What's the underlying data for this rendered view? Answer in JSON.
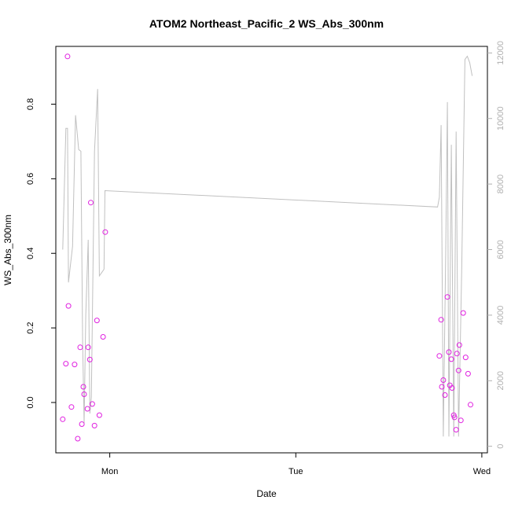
{
  "chart_data": {
    "type": "scatter",
    "title": "ATOM2 Northeast_Pacific_2 WS_Abs_300nm",
    "xlabel": "Date",
    "ylabel": "WS_Abs_300nm",
    "x_ticks": [
      {
        "label": "Mon",
        "value": 0.0
      },
      {
        "label": "Tue",
        "value": 1.0
      },
      {
        "label": "Wed",
        "value": 2.0
      }
    ],
    "xlim": [
      -0.29,
      2.03
    ],
    "ylim": [
      -0.135,
      0.955
    ],
    "y_ticks": [
      "0.0",
      "0.2",
      "0.4",
      "0.6",
      "0.8"
    ],
    "y2lim": [
      -200,
      12200
    ],
    "y2_ticks": [
      "0",
      "2000",
      "4000",
      "6000",
      "8000",
      "10000",
      "12000"
    ],
    "colors": {
      "points": "#e020e0",
      "line": "#c0c0c0",
      "axis": "#000000",
      "axis2": "#b0b0b0"
    },
    "series": [
      {
        "marker": "open-circle",
        "axis": "left",
        "points": [
          {
            "x": -0.253,
            "y": -0.045
          },
          {
            "x": -0.236,
            "y": 0.104
          },
          {
            "x": -0.227,
            "y": 0.928
          },
          {
            "x": -0.222,
            "y": 0.259
          },
          {
            "x": -0.206,
            "y": -0.012
          },
          {
            "x": -0.189,
            "y": 0.102
          },
          {
            "x": -0.172,
            "y": -0.097
          },
          {
            "x": -0.159,
            "y": 0.148
          },
          {
            "x": -0.15,
            "y": -0.058
          },
          {
            "x": -0.142,
            "y": 0.042
          },
          {
            "x": -0.138,
            "y": 0.022
          },
          {
            "x": -0.12,
            "y": -0.017
          },
          {
            "x": -0.116,
            "y": 0.148
          },
          {
            "x": -0.107,
            "y": 0.115
          },
          {
            "x": -0.102,
            "y": 0.536
          },
          {
            "x": -0.094,
            "y": -0.004
          },
          {
            "x": -0.082,
            "y": -0.062
          },
          {
            "x": -0.069,
            "y": 0.22
          },
          {
            "x": -0.056,
            "y": -0.034
          },
          {
            "x": -0.036,
            "y": 0.176
          },
          {
            "x": -0.024,
            "y": 0.457
          },
          {
            "x": 1.772,
            "y": 0.125
          },
          {
            "x": 1.781,
            "y": 0.222
          },
          {
            "x": 1.785,
            "y": 0.042
          },
          {
            "x": 1.793,
            "y": 0.06
          },
          {
            "x": 1.802,
            "y": 0.02
          },
          {
            "x": 1.815,
            "y": 0.283
          },
          {
            "x": 1.823,
            "y": 0.135
          },
          {
            "x": 1.828,
            "y": 0.046
          },
          {
            "x": 1.836,
            "y": 0.116
          },
          {
            "x": 1.84,
            "y": 0.039
          },
          {
            "x": 1.849,
            "y": -0.034
          },
          {
            "x": 1.853,
            "y": -0.04
          },
          {
            "x": 1.862,
            "y": -0.073
          },
          {
            "x": 1.866,
            "y": 0.131
          },
          {
            "x": 1.875,
            "y": 0.086
          },
          {
            "x": 1.879,
            "y": 0.154
          },
          {
            "x": 1.887,
            "y": -0.048
          },
          {
            "x": 1.9,
            "y": 0.24
          },
          {
            "x": 1.913,
            "y": 0.121
          },
          {
            "x": 1.926,
            "y": 0.077
          },
          {
            "x": 1.939,
            "y": -0.006
          }
        ]
      },
      {
        "line": true,
        "axis": "right",
        "points": [
          {
            "x": -0.253,
            "y": 6000
          },
          {
            "x": -0.236,
            "y": 9700
          },
          {
            "x": -0.227,
            "y": 9700
          },
          {
            "x": -0.222,
            "y": 5000
          },
          {
            "x": -0.2,
            "y": 6100
          },
          {
            "x": -0.184,
            "y": 10100
          },
          {
            "x": -0.167,
            "y": 9050
          },
          {
            "x": -0.155,
            "y": 9000
          },
          {
            "x": -0.146,
            "y": 3200
          },
          {
            "x": -0.138,
            "y": 700
          },
          {
            "x": -0.129,
            "y": 4000
          },
          {
            "x": -0.116,
            "y": 6300
          },
          {
            "x": -0.107,
            "y": 1000
          },
          {
            "x": -0.099,
            "y": 1500
          },
          {
            "x": -0.082,
            "y": 9000
          },
          {
            "x": -0.065,
            "y": 10900
          },
          {
            "x": -0.056,
            "y": 5200
          },
          {
            "x": -0.043,
            "y": 5300
          },
          {
            "x": -0.031,
            "y": 5400
          },
          {
            "x": -0.026,
            "y": 7800
          },
          {
            "x": 1.762,
            "y": 7300
          },
          {
            "x": 1.772,
            "y": 7600
          },
          {
            "x": 1.781,
            "y": 9800
          },
          {
            "x": 1.793,
            "y": 300
          },
          {
            "x": 1.806,
            "y": 6000
          },
          {
            "x": 1.815,
            "y": 10500
          },
          {
            "x": 1.823,
            "y": 300
          },
          {
            "x": 1.836,
            "y": 9200
          },
          {
            "x": 1.849,
            "y": 300
          },
          {
            "x": 1.862,
            "y": 9600
          },
          {
            "x": 1.875,
            "y": 300
          },
          {
            "x": 1.892,
            "y": 5400
          },
          {
            "x": 1.909,
            "y": 11800
          },
          {
            "x": 1.922,
            "y": 11900
          },
          {
            "x": 1.935,
            "y": 11700
          },
          {
            "x": 1.948,
            "y": 11300
          }
        ]
      }
    ]
  }
}
